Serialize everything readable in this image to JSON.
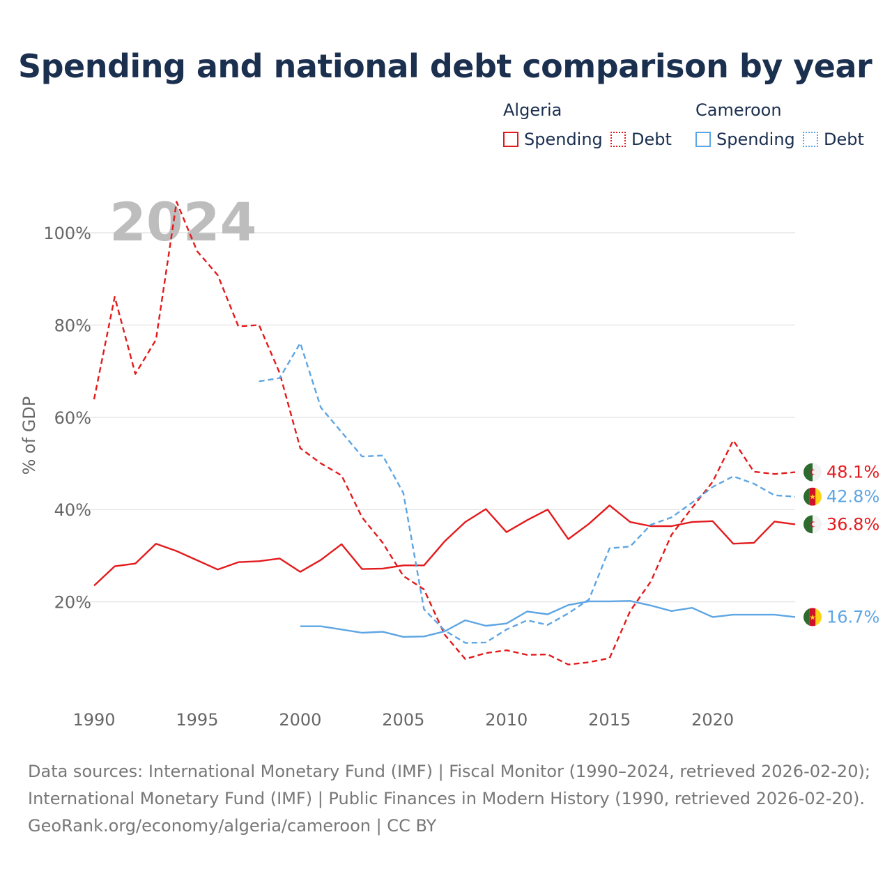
{
  "title": "Spending and national debt comparison by year",
  "legend": {
    "groups": [
      {
        "country": "Algeria",
        "color": "#e31a1c",
        "items": [
          "Spending",
          "Debt"
        ]
      },
      {
        "country": "Cameroon",
        "color": "#5da5e3",
        "items": [
          "Spending",
          "Debt"
        ]
      }
    ]
  },
  "year_badge": "2024",
  "footer": {
    "line1": "Data sources: International Monetary Fund (IMF) | Fiscal Monitor (1990–2024, retrieved 2026-02-20);",
    "line2": "International Monetary Fund (IMF) | Public Finances in Modern History (1990, retrieved 2026-02-20).",
    "line3": "GeoRank.org/economy/algeria/cameroon | CC BY"
  },
  "chart_data": {
    "type": "line",
    "title": "Spending and national debt comparison by year",
    "xlabel": "",
    "ylabel": "% of GDP",
    "xlim": [
      1990,
      2024
    ],
    "ylim": [
      0,
      110
    ],
    "x_ticks": [
      1990,
      1995,
      2000,
      2005,
      2010,
      2015,
      2020
    ],
    "y_ticks": [
      20,
      40,
      60,
      80,
      100
    ],
    "y_tick_labels": [
      "20%",
      "40%",
      "60%",
      "80%",
      "100%"
    ],
    "grid": true,
    "series": [
      {
        "name": "Algeria Spending",
        "country": "Algeria",
        "metric": "Spending",
        "color": "#e31a1c",
        "dash": "solid",
        "end_label": "36.8%",
        "flag": "algeria",
        "x": [
          1990,
          1991,
          1992,
          1993,
          1994,
          1995,
          1996,
          1997,
          1998,
          1999,
          2000,
          2001,
          2002,
          2003,
          2004,
          2005,
          2006,
          2007,
          2008,
          2009,
          2010,
          2011,
          2012,
          2013,
          2014,
          2015,
          2016,
          2017,
          2018,
          2019,
          2020,
          2021,
          2022,
          2023,
          2024
        ],
        "values": [
          23.5,
          27.7,
          28.3,
          32.6,
          31.0,
          29.0,
          27.0,
          28.6,
          28.8,
          29.4,
          26.5,
          29.1,
          32.5,
          27.1,
          27.2,
          27.9,
          27.9,
          33.1,
          37.3,
          40.1,
          35.1,
          37.7,
          40.0,
          33.6,
          36.9,
          40.9,
          37.3,
          36.4,
          36.4,
          37.3,
          37.5,
          32.6,
          32.8,
          37.4,
          36.8
        ]
      },
      {
        "name": "Algeria Debt",
        "country": "Algeria",
        "metric": "Debt",
        "color": "#e31a1c",
        "dash": "dashed",
        "end_label": "48.1%",
        "flag": "algeria",
        "x": [
          1990,
          1991,
          1992,
          1993,
          1994,
          1995,
          1996,
          1997,
          1998,
          1999,
          2000,
          2001,
          2002,
          2003,
          2004,
          2005,
          2006,
          2007,
          2008,
          2009,
          2010,
          2011,
          2012,
          2013,
          2014,
          2015,
          2016,
          2017,
          2018,
          2019,
          2020,
          2021,
          2022,
          2023,
          2024
        ],
        "values": [
          63.9,
          86.1,
          69.4,
          76.8,
          106.7,
          96.0,
          90.8,
          79.7,
          80.0,
          69.6,
          53.3,
          50.0,
          47.4,
          38.3,
          32.8,
          25.6,
          22.7,
          12.9,
          7.6,
          8.9,
          9.5,
          8.5,
          8.6,
          6.4,
          6.9,
          7.8,
          18.0,
          24.4,
          34.5,
          40.4,
          46.0,
          55.0,
          48.2,
          47.7,
          48.1
        ]
      },
      {
        "name": "Cameroon Spending",
        "country": "Cameroon",
        "metric": "Spending",
        "color": "#5da5e3",
        "dash": "solid",
        "end_label": "16.7%",
        "flag": "cameroon",
        "x": [
          2000,
          2001,
          2002,
          2003,
          2004,
          2005,
          2006,
          2007,
          2008,
          2009,
          2010,
          2011,
          2012,
          2013,
          2014,
          2015,
          2016,
          2017,
          2018,
          2019,
          2020,
          2021,
          2022,
          2023,
          2024
        ],
        "values": [
          14.7,
          14.7,
          14.0,
          13.3,
          13.5,
          12.4,
          12.5,
          13.6,
          16.0,
          14.8,
          15.3,
          17.9,
          17.3,
          19.3,
          20.1,
          20.1,
          20.2,
          19.2,
          18.0,
          18.7,
          16.7,
          17.2,
          17.2,
          17.2,
          16.7
        ]
      },
      {
        "name": "Cameroon Debt",
        "country": "Cameroon",
        "metric": "Debt",
        "color": "#5da5e3",
        "dash": "dashed",
        "end_label": "42.8%",
        "flag": "cameroon",
        "x": [
          1998,
          1999,
          2000,
          2001,
          2002,
          2003,
          2004,
          2005,
          2006,
          2007,
          2008,
          2009,
          2010,
          2011,
          2012,
          2013,
          2014,
          2015,
          2016,
          2017,
          2018,
          2019,
          2020,
          2021,
          2022,
          2023,
          2024
        ],
        "values": [
          67.8,
          68.5,
          76.1,
          62.1,
          56.8,
          51.5,
          51.7,
          43.6,
          18.4,
          13.8,
          11.1,
          11.2,
          14.0,
          16.0,
          15.0,
          17.5,
          20.5,
          31.6,
          32.0,
          36.7,
          38.3,
          41.5,
          44.9,
          47.2,
          45.6,
          43.1,
          42.8
        ]
      }
    ]
  }
}
